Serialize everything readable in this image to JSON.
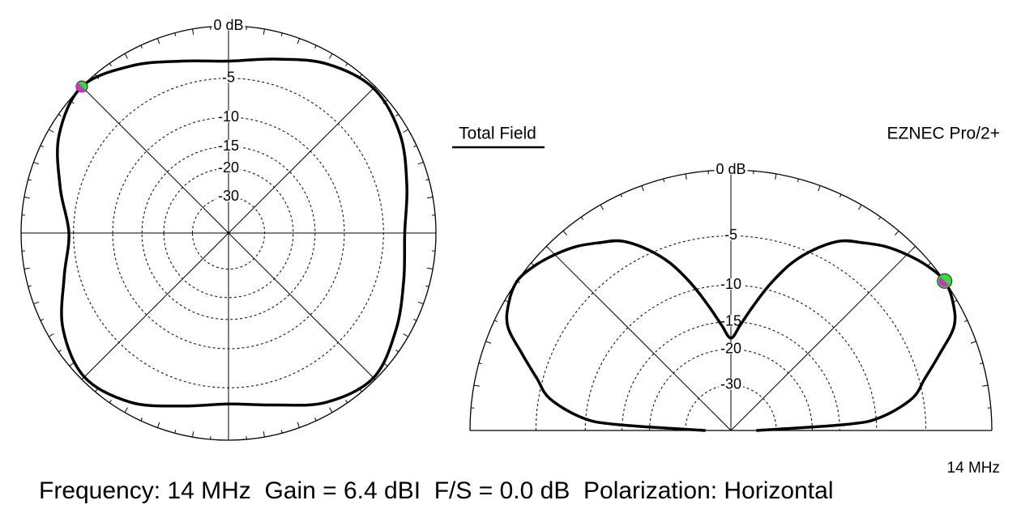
{
  "header": {
    "title": "Total Field",
    "program": "EZNEC Pro/2+"
  },
  "footer": {
    "frequency": "14 MHz",
    "summary": "Frequency: 14 MHz  Gain = 6.4 dBI  F/S = 0.0 dB  Polarization: Horizontal"
  },
  "chart_data": [
    {
      "type": "polar",
      "scale": "arrl-log",
      "color": "#000000",
      "rticks": [
        {
          "value": 0,
          "label": "0 dB"
        },
        -5,
        -10,
        -15,
        -20,
        -30
      ],
      "angles": [
        0,
        15,
        30,
        45,
        60,
        75,
        90,
        105,
        120,
        135,
        150,
        165,
        180,
        195,
        210,
        225,
        240,
        255,
        270,
        285,
        300,
        315,
        330,
        345
      ],
      "values": [
        -2.8,
        -2.0,
        -0.8,
        -0.2,
        -1.0,
        -2.4,
        -3.2,
        -2.6,
        -1.2,
        0,
        -1.0,
        -3.0,
        -4.5,
        -3.4,
        -1.4,
        -0.3,
        -1.0,
        -2.5,
        -3.3,
        -2.6,
        -1.0,
        -0.2,
        -1.2,
        -2.3
      ],
      "cursor_angle": 135
    },
    {
      "type": "polar-half",
      "scale": "arrl-log",
      "color": "#000000",
      "rticks": [
        {
          "value": 0,
          "label": "0 dB"
        },
        -5,
        -10,
        -15,
        -20,
        -30
      ],
      "angles": [
        0,
        3,
        5,
        10,
        15,
        20,
        25,
        30,
        35,
        40,
        45,
        50,
        55,
        60,
        65,
        70,
        75,
        80,
        85,
        90,
        95,
        100,
        105,
        110,
        115,
        120,
        125,
        130,
        135,
        140,
        145,
        150,
        155,
        160,
        165,
        170,
        175,
        177,
        180
      ],
      "values": [
        -40,
        -14,
        -9.5,
        -6,
        -4.5,
        -2.8,
        -1.0,
        -0.3,
        0,
        -0.3,
        -0.8,
        -1.4,
        -2.2,
        -3.0,
        -4.5,
        -6.5,
        -9.3,
        -12.5,
        -15.5,
        -17.8,
        -15.5,
        -12.5,
        -9.3,
        -6.5,
        -4.5,
        -3.0,
        -2.2,
        -1.4,
        -0.8,
        -0.3,
        0,
        -0.3,
        -1.0,
        -2.8,
        -4.5,
        -6,
        -9.5,
        -14,
        -40
      ],
      "cursor_angle": 35
    }
  ]
}
